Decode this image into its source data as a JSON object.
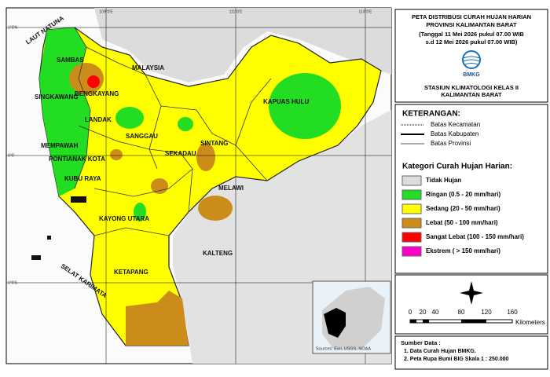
{
  "map": {
    "coords": {
      "top": [
        "109°0'E",
        "111°0'E",
        "113°0'E"
      ],
      "left": [
        "1°0'N",
        "0°0'",
        "1°0'S"
      ]
    },
    "labels": [
      "LAUT NATUNA",
      "SAMBAS",
      "MALAYSIA",
      "BENGKAYANG",
      "SINGKAWANG",
      "LANDAK",
      "MEMPAWAH",
      "PONTIANAK KOTA",
      "KUBU RAYA",
      "SANGGAU",
      "SEKADAU",
      "SINTANG",
      "KAPUAS HULU",
      "MELAWI",
      "KAYONG UTARA",
      "KETAPANG",
      "KALTENG",
      "SELAT KARIMATA"
    ],
    "inset_credit": "Sources: Esri, USGS, NOAA"
  },
  "panel": {
    "title": [
      "PETA DISTRIBUSI CURAH HUJAN HARIAN",
      "PROVINSI KALIMANTAN BARAT",
      "(Tanggal 11 Mei 2026 pukul 07.00 WIB",
      "s.d 12 Mei 2026 pukul 07.00 WIB)"
    ],
    "logo": "BMKG",
    "station": [
      "STASIUN KLIMATOLOGI KELAS II",
      "KALIMANTAN BARAT"
    ],
    "legend_title": "KETERANGAN:",
    "boundaries": [
      "Batas Kecamatan",
      "Batas Kabupaten",
      "Batas Provinsi"
    ],
    "category_title": "Kategori Curah Hujan Harian:",
    "categories": [
      "Tidak Hujan",
      "Ringan (0.5 - 20 mm/hari)",
      "Sedang (20 - 50 mm/hari)",
      "Lebat (50 - 100 mm/hari)",
      "Sangat Lebat (100 - 150 mm/hari)",
      "Ekstrem ( > 150 mm/hari)"
    ],
    "scale": [
      "0",
      "20",
      "40",
      "80",
      "120",
      "160"
    ],
    "scale_unit": "Kilometers",
    "source_title": "Sumber Data :",
    "sources": [
      "1. Data Curah Hujan BMKG.",
      "2. Peta Rupa Bumi BIG Skala 1 : 250.000"
    ]
  }
}
